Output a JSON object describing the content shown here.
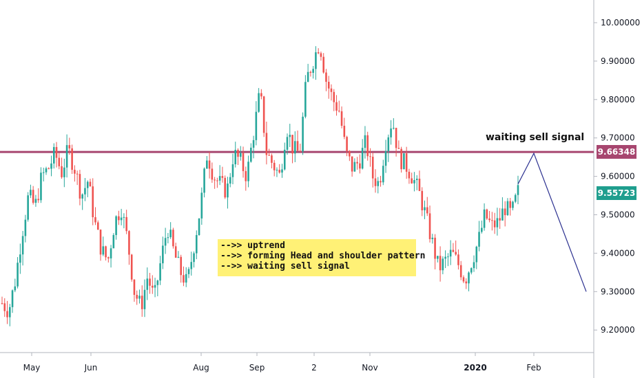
{
  "chart_data": {
    "type": "candlestick",
    "title": "",
    "xlabel": "",
    "ylabel": "",
    "ylim": [
      9.15,
      10.05
    ],
    "y_ticks": [
      "10.00000",
      "9.90000",
      "9.80000",
      "9.70000",
      "9.60000",
      "9.50000",
      "9.40000",
      "9.30000",
      "9.20000"
    ],
    "x_ticks": [
      "May",
      "Jun",
      "Aug",
      "Sep",
      "2",
      "Nov",
      "2020",
      "Feb"
    ],
    "grid": false,
    "up_color": "#26a69a",
    "down_color": "#ef5350",
    "close_path": [
      9.27,
      9.25,
      9.33,
      9.45,
      9.55,
      9.52,
      9.6,
      9.62,
      9.66,
      9.61,
      9.67,
      9.62,
      9.55,
      9.59,
      9.48,
      9.41,
      9.38,
      9.48,
      9.52,
      9.43,
      9.3,
      9.26,
      9.34,
      9.28,
      9.38,
      9.47,
      9.4,
      9.35,
      9.32,
      9.42,
      9.52,
      9.66,
      9.6,
      9.58,
      9.56,
      9.66,
      9.64,
      9.6,
      9.71,
      9.82,
      9.66,
      9.63,
      9.6,
      9.73,
      9.67,
      9.66,
      9.85,
      9.9,
      9.95,
      9.85,
      9.8,
      9.77,
      9.66,
      9.62,
      9.64,
      9.69,
      9.6,
      9.58,
      9.69,
      9.75,
      9.65,
      9.63,
      9.6,
      9.56,
      9.5,
      9.43,
      9.36,
      9.38,
      9.4,
      9.37,
      9.33,
      9.38,
      9.43,
      9.5,
      9.47,
      9.48,
      9.52,
      9.5,
      9.56
    ],
    "horizontal_level": 9.66348,
    "horizontal_level_label": "9.66348",
    "horizontal_level_color": "#a7466f",
    "last_price": 9.55723,
    "last_price_label": "9.55723",
    "last_price_color": "#1f9e8e",
    "projection": [
      {
        "date_label": "",
        "value": 9.58
      },
      {
        "date_label": "Feb",
        "value": 9.66
      },
      {
        "date_label": "",
        "value": 9.3
      }
    ],
    "projection_color": "#2a2f8f",
    "annotations": [
      "-->> uptrend",
      "-->> forming Head and shoulder pattern",
      "-->> waiting sell signal"
    ],
    "signal_label": "waiting sell signal"
  }
}
